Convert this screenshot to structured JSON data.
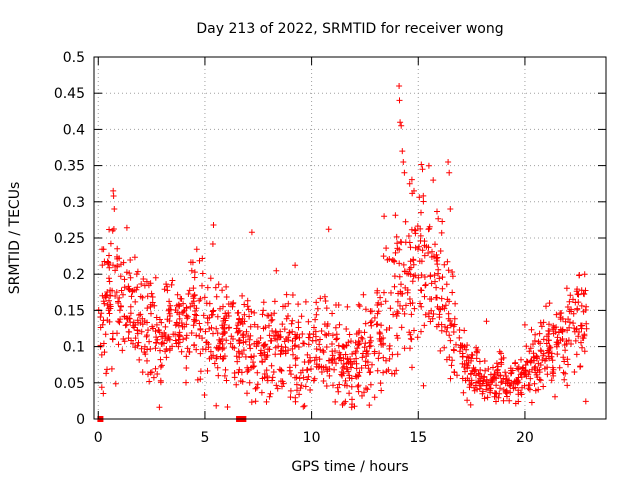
{
  "chart_data": {
    "type": "scatter",
    "title": "Day 213 of 2022, SRMTID for receiver wong",
    "xlabel": "GPS time / hours",
    "ylabel": "SRMTID / TECUs",
    "xlim": [
      -0.2,
      23.8
    ],
    "ylim": [
      0,
      0.5
    ],
    "x_ticks": [
      0,
      5,
      10,
      15,
      20
    ],
    "x_tick_labels": [
      "0",
      "5",
      "10",
      "15",
      "20"
    ],
    "y_ticks": [
      0,
      0.05,
      0.1,
      0.15,
      0.2,
      0.25,
      0.3,
      0.35,
      0.4,
      0.45,
      0.5
    ],
    "y_tick_labels": [
      "0",
      "0.05",
      "0.1",
      "0.15",
      "0.2",
      "0.25",
      "0.3",
      "0.35",
      "0.4",
      "0.45",
      "0.5"
    ],
    "grid": true,
    "marker": "+",
    "marker_color": "#ff0000",
    "square_marker_color": "#ff0000",
    "zero_markers": [
      0.1,
      6.6,
      6.8
    ],
    "trend": {
      "hours": [
        0,
        0.5,
        1,
        1.5,
        2,
        2.5,
        3,
        3.5,
        4,
        4.5,
        5,
        5.5,
        6,
        6.5,
        7,
        7.5,
        8,
        8.5,
        9,
        9.5,
        10,
        10.5,
        11,
        11.5,
        12,
        12.5,
        13,
        13.5,
        14,
        14.5,
        15,
        15.5,
        16,
        16.5,
        17,
        17.5,
        18,
        18.5,
        19,
        19.5,
        20,
        20.5,
        21,
        21.5,
        22,
        22.5,
        23
      ],
      "median": [
        0.16,
        0.17,
        0.17,
        0.15,
        0.13,
        0.12,
        0.11,
        0.12,
        0.13,
        0.14,
        0.13,
        0.12,
        0.11,
        0.1,
        0.1,
        0.09,
        0.1,
        0.11,
        0.1,
        0.09,
        0.1,
        0.11,
        0.09,
        0.08,
        0.08,
        0.09,
        0.11,
        0.13,
        0.16,
        0.2,
        0.21,
        0.2,
        0.18,
        0.14,
        0.1,
        0.07,
        0.05,
        0.05,
        0.055,
        0.05,
        0.06,
        0.08,
        0.09,
        0.1,
        0.12,
        0.13,
        0.14
      ],
      "spread": [
        0.05,
        0.05,
        0.05,
        0.04,
        0.04,
        0.04,
        0.04,
        0.04,
        0.04,
        0.04,
        0.04,
        0.04,
        0.035,
        0.035,
        0.035,
        0.035,
        0.035,
        0.035,
        0.035,
        0.035,
        0.035,
        0.035,
        0.035,
        0.03,
        0.03,
        0.035,
        0.04,
        0.05,
        0.06,
        0.07,
        0.06,
        0.06,
        0.05,
        0.04,
        0.025,
        0.02,
        0.015,
        0.015,
        0.02,
        0.015,
        0.02,
        0.025,
        0.025,
        0.03,
        0.035,
        0.035,
        0.035
      ]
    },
    "notable_points": [
      {
        "x": 0.7,
        "y": 0.315
      },
      {
        "x": 0.72,
        "y": 0.308
      },
      {
        "x": 0.75,
        "y": 0.29
      },
      {
        "x": 5.4,
        "y": 0.268
      },
      {
        "x": 7.2,
        "y": 0.258
      },
      {
        "x": 10.8,
        "y": 0.262
      },
      {
        "x": 13.4,
        "y": 0.28
      },
      {
        "x": 14.1,
        "y": 0.46
      },
      {
        "x": 14.12,
        "y": 0.44
      },
      {
        "x": 14.15,
        "y": 0.41
      },
      {
        "x": 14.2,
        "y": 0.405
      },
      {
        "x": 14.25,
        "y": 0.37
      },
      {
        "x": 14.3,
        "y": 0.355
      },
      {
        "x": 14.35,
        "y": 0.34
      },
      {
        "x": 14.6,
        "y": 0.325
      },
      {
        "x": 14.8,
        "y": 0.315
      },
      {
        "x": 15.2,
        "y": 0.345
      },
      {
        "x": 15.7,
        "y": 0.33
      },
      {
        "x": 16.4,
        "y": 0.355
      },
      {
        "x": 16.45,
        "y": 0.34
      },
      {
        "x": 16.5,
        "y": 0.29
      },
      {
        "x": 18.2,
        "y": 0.135
      },
      {
        "x": 20.0,
        "y": 0.13
      },
      {
        "x": 22.8,
        "y": 0.2
      }
    ]
  }
}
